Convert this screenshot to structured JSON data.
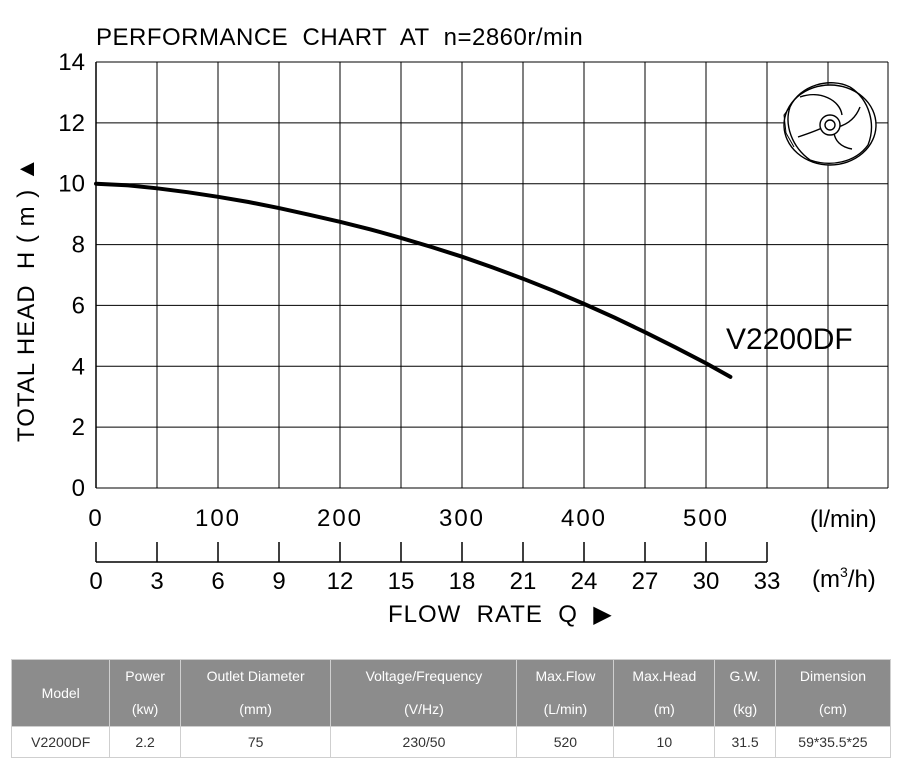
{
  "chart_data": {
    "type": "line",
    "title": "PERFORMANCE  CHART  AT  n=2860r/min",
    "ylabel": "TOTAL HEAD  H ( m ) ▲",
    "xlabel": "FLOW  RATE  Q  ▶",
    "x_unit_primary": "(l/min)",
    "x_unit_secondary_base": "(m",
    "x_unit_secondary_sup": "3",
    "x_unit_secondary_end": "/h)",
    "ylim": [
      0,
      14
    ],
    "yticks": [
      "0",
      "2",
      "4",
      "6",
      "8",
      "10",
      "12",
      "14"
    ],
    "xlim_lmin": [
      0,
      650
    ],
    "xticks_lmin": [
      "0",
      "100",
      "200",
      "300",
      "400",
      "500"
    ],
    "xticks_m3h": [
      "0",
      "3",
      "6",
      "9",
      "12",
      "15",
      "18",
      "21",
      "24",
      "27",
      "30",
      "33"
    ],
    "grid": true,
    "series": [
      {
        "name": "V2200DF",
        "x": [
          0,
          25,
          50,
          75,
          100,
          125,
          150,
          175,
          200,
          225,
          250,
          275,
          300,
          325,
          350,
          375,
          400,
          425,
          450,
          475,
          500,
          520
        ],
        "y": [
          10.0,
          9.95,
          9.85,
          9.72,
          9.57,
          9.4,
          9.2,
          8.98,
          8.75,
          8.5,
          8.22,
          7.92,
          7.6,
          7.25,
          6.88,
          6.48,
          6.05,
          5.6,
          5.12,
          4.62,
          4.1,
          3.65
        ]
      }
    ]
  },
  "spec_table": {
    "headers": [
      {
        "line1": "Model",
        "line2": ""
      },
      {
        "line1": "Power",
        "line2": "(kw)"
      },
      {
        "line1": "Outlet Diameter",
        "line2": "(mm)"
      },
      {
        "line1": "Voltage/Frequency",
        "line2": "(V/Hz)"
      },
      {
        "line1": "Max.Flow",
        "line2": "(L/min)"
      },
      {
        "line1": "Max.Head",
        "line2": "(m)"
      },
      {
        "line1": "G.W.",
        "line2": "(kg)"
      },
      {
        "line1": "Dimension",
        "line2": "(cm)"
      }
    ],
    "row": [
      "V2200DF",
      "2.2",
      "75",
      "230/50",
      "520",
      "10",
      "31.5",
      "59*35.5*25"
    ]
  },
  "icons": [
    "impeller-icon"
  ],
  "colors": {
    "line": "#000000",
    "grid": "#000000",
    "header_bg": "#8c8c8c",
    "header_text": "#ffffff"
  }
}
